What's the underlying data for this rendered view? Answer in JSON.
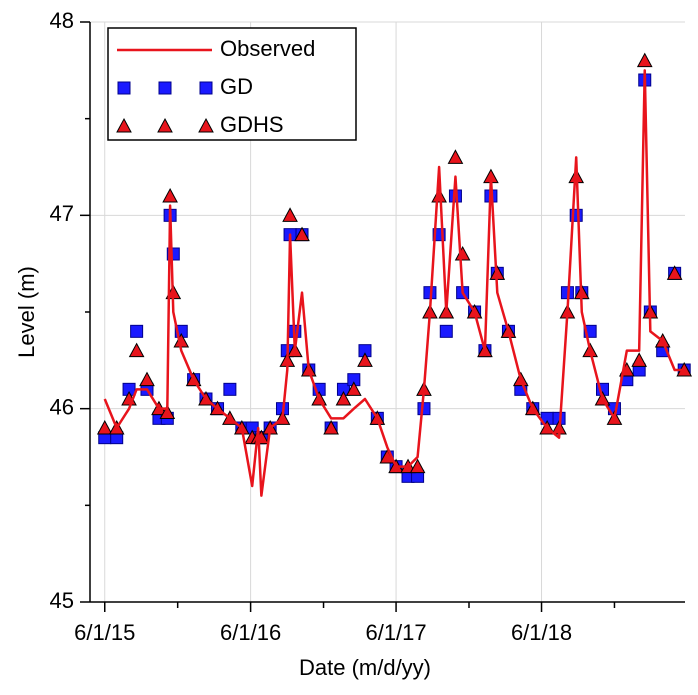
{
  "chart_data": {
    "type": "line",
    "xlabel": "Date (m/d/yy)",
    "ylabel": "Level (m)",
    "x": [
      "6/1/15",
      "7/1/15",
      "8/1/15",
      "8/20/15",
      "9/15/15",
      "10/15/15",
      "11/5/15",
      "11/12/15",
      "11/20/15",
      "12/10/15",
      "1/10/16",
      "2/10/16",
      "3/10/16",
      "4/10/16",
      "5/10/16",
      "6/5/16",
      "6/20/16",
      "6/28/16",
      "7/20/16",
      "8/20/16",
      "9/1/16",
      "9/8/16",
      "9/20/16",
      "10/8/16",
      "10/25/16",
      "11/20/16",
      "12/20/16",
      "1/20/17",
      "2/15/17",
      "3/15/17",
      "4/15/17",
      "5/10/17",
      "6/1/17",
      "7/1/17",
      "7/25/17",
      "8/10/17",
      "8/25/17",
      "9/17/17",
      "10/5/17",
      "10/28/17",
      "11/15/17",
      "12/15/17",
      "1/10/18",
      "1/25/18",
      "2/10/18",
      "3/10/18",
      "4/10/18",
      "5/10/18",
      "6/15/18",
      "7/15/18",
      "8/5/18",
      "8/27/18",
      "9/10/18",
      "10/1/18",
      "11/1/18",
      "12/1/18",
      "1/1/19",
      "2/1/19",
      "2/15/19",
      "3/1/19",
      "4/1/19",
      "5/1/19",
      "5/25/19"
    ],
    "series": [
      {
        "name": "Observed",
        "color": "#e8141c",
        "marker": "line",
        "values": [
          46.05,
          45.9,
          46.0,
          46.1,
          46.1,
          46.0,
          46.0,
          47.05,
          46.5,
          46.3,
          46.15,
          46.05,
          46.0,
          45.95,
          45.9,
          45.6,
          45.9,
          45.55,
          45.9,
          45.95,
          46.2,
          46.9,
          46.3,
          46.6,
          46.2,
          46.05,
          45.95,
          45.95,
          46.0,
          46.05,
          45.95,
          45.8,
          45.7,
          45.7,
          45.75,
          46.1,
          46.5,
          47.25,
          46.5,
          47.2,
          46.6,
          46.5,
          46.3,
          47.2,
          46.6,
          46.4,
          46.15,
          46.0,
          45.9,
          45.85,
          46.5,
          47.3,
          46.5,
          46.3,
          46.05,
          45.95,
          46.3,
          46.3,
          47.75,
          46.4,
          46.35,
          46.2,
          46.2
        ]
      },
      {
        "name": "GD",
        "color": "#1a1aff",
        "marker": "square",
        "values": [
          45.85,
          45.85,
          46.1,
          46.4,
          46.1,
          45.95,
          45.95,
          47.0,
          46.8,
          46.4,
          46.15,
          46.05,
          46.0,
          46.1,
          45.9,
          45.9,
          45.85,
          45.85,
          45.9,
          46.0,
          46.3,
          46.9,
          46.4,
          46.9,
          46.2,
          46.1,
          45.9,
          46.1,
          46.15,
          46.3,
          45.95,
          45.75,
          45.7,
          45.65,
          45.65,
          46.0,
          46.6,
          46.9,
          46.4,
          47.1,
          46.6,
          46.5,
          46.3,
          47.1,
          46.7,
          46.4,
          46.1,
          46.0,
          45.95,
          45.95,
          46.6,
          47.0,
          46.6,
          46.4,
          46.1,
          46.0,
          46.15,
          46.2,
          47.7,
          46.5,
          46.3,
          46.7,
          46.2
        ]
      },
      {
        "name": "GDHS",
        "color": "#e8141c",
        "marker": "triangle",
        "values": [
          45.9,
          45.9,
          46.05,
          46.3,
          46.15,
          46.0,
          45.98,
          47.1,
          46.6,
          46.35,
          46.15,
          46.05,
          46.0,
          45.95,
          45.9,
          45.85,
          45.85,
          45.85,
          45.9,
          45.95,
          46.25,
          47.0,
          46.3,
          46.9,
          46.2,
          46.05,
          45.9,
          46.05,
          46.1,
          46.25,
          45.95,
          45.75,
          45.7,
          45.7,
          45.7,
          46.1,
          46.5,
          47.1,
          46.5,
          47.3,
          46.8,
          46.5,
          46.3,
          47.2,
          46.7,
          46.4,
          46.15,
          46.0,
          45.9,
          45.9,
          46.5,
          47.2,
          46.6,
          46.3,
          46.05,
          45.95,
          46.2,
          46.25,
          47.8,
          46.5,
          46.35,
          46.7,
          46.2
        ]
      }
    ],
    "xlim": [
      "4/25/15",
      "5/27/19"
    ],
    "xticks": [
      "6/1/15",
      "6/1/16",
      "6/1/17",
      "6/1/18"
    ],
    "xminorticks": [
      "12/1/15",
      "12/1/16",
      "12/1/17",
      "12/1/18"
    ],
    "ylim": [
      45,
      48
    ],
    "yticks": [
      45,
      46,
      47,
      48
    ],
    "yminorticks": [
      45.5,
      46.5,
      47.5
    ],
    "grid": true,
    "legend": "upper left"
  }
}
